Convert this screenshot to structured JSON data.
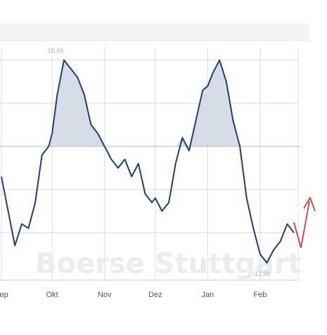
{
  "chart_data": {
    "type": "line",
    "title": "",
    "xlabel": "",
    "ylabel": "",
    "x_ticks": [
      "Sep",
      "Okt",
      "Nov",
      "Dez",
      "Jan",
      "Feb"
    ],
    "reference_line": 0,
    "annotations": {
      "max_label": "10,04",
      "min_label": "-13,90"
    },
    "watermark": "Boerse Stuttgart",
    "colors": {
      "line": "#1f3f73",
      "fill": "#d6dde8",
      "grid": "#dcdcdc",
      "arrow": "#dd2222"
    },
    "series": [
      {
        "x": [
          "2023-09-01",
          "2023-09-05",
          "2023-09-09",
          "2023-09-13",
          "2023-09-17",
          "2023-09-21",
          "2023-09-25",
          "2023-09-29",
          "2023-10-01",
          "2023-10-04",
          "2023-10-08",
          "2023-10-12",
          "2023-10-16",
          "2023-10-20",
          "2023-10-24",
          "2023-10-28",
          "2023-11-01",
          "2023-11-05",
          "2023-11-09",
          "2023-11-13",
          "2023-11-17",
          "2023-11-21",
          "2023-11-25",
          "2023-11-29",
          "2023-12-01",
          "2023-12-05",
          "2023-12-09",
          "2023-12-13",
          "2023-12-17",
          "2023-12-21",
          "2023-12-25",
          "2023-12-29",
          "2024-01-01",
          "2024-01-04",
          "2024-01-08",
          "2024-01-12",
          "2024-01-16",
          "2024-01-20",
          "2024-01-24",
          "2024-01-28",
          "2024-02-01",
          "2024-02-05",
          "2024-02-09",
          "2024-02-13",
          "2024-02-17",
          "2024-02-21"
        ],
        "y": [
          -3.5,
          -7.5,
          -11.5,
          -9.0,
          -9.5,
          -6.5,
          -1.0,
          0.0,
          1.5,
          6.0,
          10.0,
          9.0,
          8.0,
          6.0,
          2.5,
          1.5,
          0.0,
          -1.5,
          -2.5,
          -1.5,
          -3.5,
          -2.0,
          -5.5,
          -6.5,
          -6.0,
          -7.5,
          -6.5,
          -2.0,
          1.0,
          -0.5,
          3.0,
          6.5,
          7.0,
          8.5,
          10.0,
          7.5,
          3.0,
          0.0,
          -6.0,
          -9.5,
          -12.5,
          -13.5,
          -12.0,
          -11.0,
          -9.0,
          -10.0
        ]
      }
    ]
  }
}
